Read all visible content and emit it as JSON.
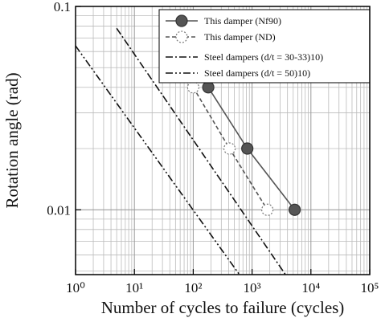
{
  "chart_data": {
    "type": "line",
    "x_label": "Number of cycles to failure (cycles)",
    "y_label": "Rotation angle (rad)",
    "xscale": "log",
    "yscale": "log",
    "grid": true,
    "legend": "upper right",
    "xlim": [
      1,
      100000
    ],
    "ylim": [
      0.0048,
      0.1
    ],
    "xticks": [
      {
        "value": 1,
        "label": "10⁰"
      },
      {
        "value": 10,
        "label": "10¹"
      },
      {
        "value": 100,
        "label": "10²"
      },
      {
        "value": 1000,
        "label": "10³"
      },
      {
        "value": 10000,
        "label": "10⁴"
      },
      {
        "value": 100000,
        "label": "10⁵"
      }
    ],
    "yticks": [
      0.01,
      0.1
    ],
    "series": [
      {
        "name": "This damper (Nf90)",
        "color": "#555555",
        "style": "solid",
        "marker": "filled",
        "x": [
          180,
          830,
          5300
        ],
        "values": [
          0.04,
          0.02,
          0.01
        ]
      },
      {
        "name": "This damper (ND)",
        "color": "#555555",
        "style": "dashed",
        "marker": "open",
        "x": [
          100,
          414,
          1820
        ],
        "values": [
          0.04,
          0.02,
          0.01
        ]
      },
      {
        "name": "Steel dampers (d/t = 30-33)10)",
        "color": "#111111",
        "style": "dashdot",
        "marker": "none",
        "x": [
          5,
          3700
        ],
        "values": [
          0.078,
          0.0048
        ]
      },
      {
        "name": "Steel dampers (d/t = 50)10)",
        "color": "#111111",
        "style": "dashdotdot",
        "marker": "none",
        "x": [
          1,
          610
        ],
        "values": [
          0.064,
          0.0048
        ]
      }
    ]
  }
}
